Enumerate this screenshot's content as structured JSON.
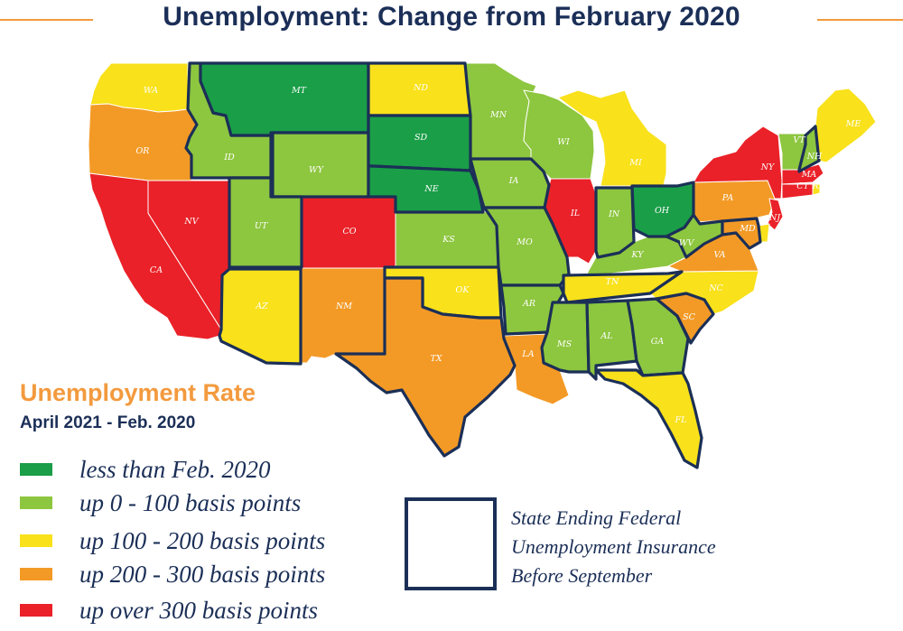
{
  "title": "Unemployment: Change from February 2020",
  "colors": {
    "title": "#1b2f57",
    "accent_rule": "#f39a3e",
    "less_than": "#1a9e48",
    "up_0_100": "#8dc63f",
    "up_100_200": "#f9e11b",
    "up_200_300": "#f39a26",
    "up_over_300": "#ea2128",
    "outline": "#1b2f57"
  },
  "legend": {
    "title": "Unemployment Rate",
    "subtitle": "April 2021 - Feb. 2020",
    "items": [
      {
        "label": "less than Feb. 2020",
        "category": "less_than"
      },
      {
        "label": "up 0 - 100 basis points",
        "category": "up_0_100"
      },
      {
        "label": "up 100 - 200 basis points",
        "category": "up_100_200"
      },
      {
        "label": "up 200 - 300 basis points",
        "category": "up_200_300"
      },
      {
        "label": "up over 300 basis points",
        "category": "up_over_300"
      }
    ],
    "outline_label_lines": [
      "State Ending Federal",
      "Unemployment Insurance",
      "Before September"
    ]
  },
  "states": [
    {
      "abbr": "WA",
      "category": "up_100_200",
      "ended_federal_ui": false
    },
    {
      "abbr": "OR",
      "category": "up_200_300",
      "ended_federal_ui": false
    },
    {
      "abbr": "CA",
      "category": "up_over_300",
      "ended_federal_ui": false
    },
    {
      "abbr": "NV",
      "category": "up_over_300",
      "ended_federal_ui": false
    },
    {
      "abbr": "ID",
      "category": "up_0_100",
      "ended_federal_ui": true
    },
    {
      "abbr": "MT",
      "category": "less_than",
      "ended_federal_ui": true
    },
    {
      "abbr": "WY",
      "category": "up_0_100",
      "ended_federal_ui": true
    },
    {
      "abbr": "UT",
      "category": "up_0_100",
      "ended_federal_ui": true
    },
    {
      "abbr": "AZ",
      "category": "up_100_200",
      "ended_federal_ui": true
    },
    {
      "abbr": "CO",
      "category": "up_over_300",
      "ended_federal_ui": false
    },
    {
      "abbr": "NM",
      "category": "up_200_300",
      "ended_federal_ui": false
    },
    {
      "abbr": "ND",
      "category": "up_100_200",
      "ended_federal_ui": true
    },
    {
      "abbr": "SD",
      "category": "less_than",
      "ended_federal_ui": true
    },
    {
      "abbr": "NE",
      "category": "less_than",
      "ended_federal_ui": true
    },
    {
      "abbr": "KS",
      "category": "up_0_100",
      "ended_federal_ui": false
    },
    {
      "abbr": "OK",
      "category": "up_100_200",
      "ended_federal_ui": true
    },
    {
      "abbr": "TX",
      "category": "up_200_300",
      "ended_federal_ui": true
    },
    {
      "abbr": "MN",
      "category": "up_0_100",
      "ended_federal_ui": false
    },
    {
      "abbr": "IA",
      "category": "up_0_100",
      "ended_federal_ui": true
    },
    {
      "abbr": "MO",
      "category": "up_0_100",
      "ended_federal_ui": true
    },
    {
      "abbr": "AR",
      "category": "up_0_100",
      "ended_federal_ui": true
    },
    {
      "abbr": "LA",
      "category": "up_200_300",
      "ended_federal_ui": false
    },
    {
      "abbr": "WI",
      "category": "up_0_100",
      "ended_federal_ui": false
    },
    {
      "abbr": "IL",
      "category": "up_over_300",
      "ended_federal_ui": false
    },
    {
      "abbr": "MI",
      "category": "up_100_200",
      "ended_federal_ui": false
    },
    {
      "abbr": "IN",
      "category": "up_0_100",
      "ended_federal_ui": true
    },
    {
      "abbr": "OH",
      "category": "less_than",
      "ended_federal_ui": true
    },
    {
      "abbr": "KY",
      "category": "up_0_100",
      "ended_federal_ui": false
    },
    {
      "abbr": "TN",
      "category": "up_100_200",
      "ended_federal_ui": true
    },
    {
      "abbr": "MS",
      "category": "up_0_100",
      "ended_federal_ui": true
    },
    {
      "abbr": "AL",
      "category": "up_0_100",
      "ended_federal_ui": true
    },
    {
      "abbr": "GA",
      "category": "up_0_100",
      "ended_federal_ui": true
    },
    {
      "abbr": "FL",
      "category": "up_100_200",
      "ended_federal_ui": true
    },
    {
      "abbr": "SC",
      "category": "up_200_300",
      "ended_federal_ui": true
    },
    {
      "abbr": "NC",
      "category": "up_100_200",
      "ended_federal_ui": false
    },
    {
      "abbr": "VA",
      "category": "up_200_300",
      "ended_federal_ui": false
    },
    {
      "abbr": "WV",
      "category": "up_0_100",
      "ended_federal_ui": true
    },
    {
      "abbr": "PA",
      "category": "up_200_300",
      "ended_federal_ui": false
    },
    {
      "abbr": "NY",
      "category": "up_over_300",
      "ended_federal_ui": false
    },
    {
      "abbr": "NJ",
      "category": "up_over_300",
      "ended_federal_ui": false
    },
    {
      "abbr": "DE",
      "category": "up_100_200",
      "ended_federal_ui": false
    },
    {
      "abbr": "MD",
      "category": "up_200_300",
      "ended_federal_ui": true
    },
    {
      "abbr": "VT",
      "category": "up_0_100",
      "ended_federal_ui": false
    },
    {
      "abbr": "NH",
      "category": "up_0_100",
      "ended_federal_ui": true
    },
    {
      "abbr": "ME",
      "category": "up_100_200",
      "ended_federal_ui": false
    },
    {
      "abbr": "MA",
      "category": "up_over_300",
      "ended_federal_ui": false
    },
    {
      "abbr": "CT",
      "category": "up_over_300",
      "ended_federal_ui": false
    },
    {
      "abbr": "RI",
      "category": "up_100_200",
      "ended_federal_ui": false
    }
  ]
}
